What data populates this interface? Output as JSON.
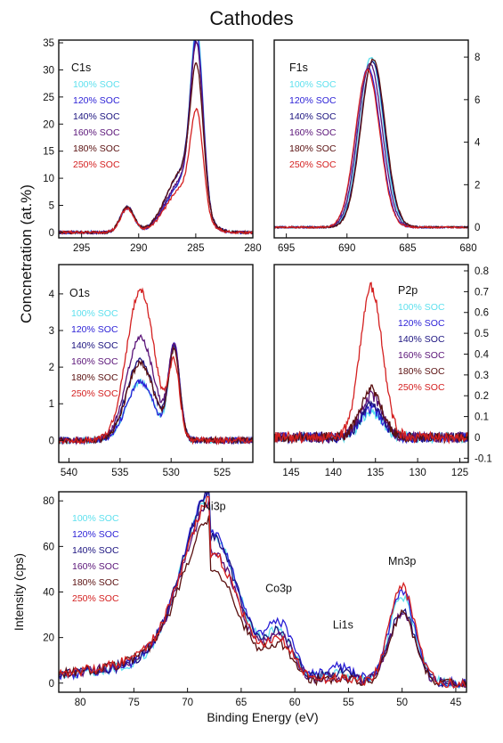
{
  "title": "Cathodes",
  "shared_ylabel": "Concnetration (at.%)",
  "legend": [
    "100% SOC",
    "120% SOC",
    "140% SOC",
    "160% SOC",
    "180% SOC",
    "250% SOC"
  ],
  "series_colors": [
    "#5ee0ee",
    "#2a1fd6",
    "#1c1480",
    "#5a1478",
    "#5a1010",
    "#d42020"
  ],
  "chart_data": [
    {
      "type": "line",
      "panel": "C1s",
      "title": "C1s",
      "xlabel": "",
      "ylabel": "",
      "xlim": [
        297,
        280
      ],
      "ylim": [
        -1,
        35.5
      ],
      "xticks": [
        295,
        290,
        285,
        280
      ],
      "yticks": [
        0,
        5,
        10,
        15,
        20,
        25,
        30,
        35
      ],
      "y_axis_side": "left",
      "peaks": [
        {
          "center": 291,
          "width": 0.6,
          "heights": [
            4.6,
            4.5,
            4.7,
            4.6,
            4.8,
            4.4
          ]
        },
        {
          "center": 286.2,
          "width": 1.4,
          "heights": [
            9,
            9,
            11,
            9.5,
            11,
            8
          ]
        },
        {
          "center": 284.9,
          "width": 0.55,
          "heights": [
            32.5,
            31,
            28,
            29,
            24,
            17.5
          ]
        }
      ],
      "noise": 0.25,
      "series": [
        {
          "name": "100% SOC"
        },
        {
          "name": "120% SOC"
        },
        {
          "name": "140% SOC"
        },
        {
          "name": "160% SOC"
        },
        {
          "name": "180% SOC"
        },
        {
          "name": "250% SOC"
        }
      ]
    },
    {
      "type": "line",
      "panel": "F1s",
      "title": "F1s",
      "xlabel": "",
      "ylabel": "",
      "xlim": [
        696,
        680
      ],
      "ylim": [
        -0.5,
        8.8
      ],
      "xticks": [
        695,
        690,
        685,
        680
      ],
      "yticks": [
        0,
        2,
        4,
        6,
        8
      ],
      "y_axis_side": "right",
      "peaks": [
        {
          "center": 688,
          "width": 1.0,
          "heights": [
            8.0,
            7.5,
            7.8,
            7.7,
            7.9,
            7.4
          ]
        }
      ],
      "peak_shifts": [
        0,
        0.25,
        -0.1,
        0.1,
        -0.15,
        0.3
      ],
      "noise": 0.04,
      "series": [
        {
          "name": "100% SOC"
        },
        {
          "name": "120% SOC"
        },
        {
          "name": "140% SOC"
        },
        {
          "name": "160% SOC"
        },
        {
          "name": "180% SOC"
        },
        {
          "name": "250% SOC"
        }
      ]
    },
    {
      "type": "line",
      "panel": "O1s",
      "title": "O1s",
      "xlabel": "",
      "ylabel": "",
      "xlim": [
        541,
        522
      ],
      "ylim": [
        -0.6,
        4.8
      ],
      "xticks": [
        540,
        535,
        530,
        525
      ],
      "yticks": [
        0,
        1,
        2,
        3,
        4
      ],
      "y_axis_side": "left",
      "peaks": [
        {
          "center": 533,
          "width": 1.35,
          "heights": [
            1.6,
            1.6,
            2.2,
            2.8,
            2.1,
            4.1
          ]
        },
        {
          "center": 529.7,
          "width": 0.55,
          "heights": [
            2.5,
            2.6,
            2.5,
            2.5,
            2.4,
            2.0
          ]
        }
      ],
      "noise": 0.08,
      "series": [
        {
          "name": "100% SOC"
        },
        {
          "name": "120% SOC"
        },
        {
          "name": "140% SOC"
        },
        {
          "name": "160% SOC"
        },
        {
          "name": "180% SOC"
        },
        {
          "name": "250% SOC"
        }
      ]
    },
    {
      "type": "line",
      "panel": "P2p",
      "title": "P2p",
      "xlabel": "",
      "ylabel": "",
      "xlim": [
        147,
        124
      ],
      "ylim": [
        -0.12,
        0.83
      ],
      "xticks": [
        145,
        140,
        135,
        130,
        125
      ],
      "yticks": [
        -0.1,
        0,
        0.1,
        0.2,
        0.3,
        0.4,
        0.5,
        0.6,
        0.7,
        0.8
      ],
      "y_axis_side": "right",
      "peaks": [
        {
          "center": 135.5,
          "width": 1.3,
          "heights": [
            0.12,
            0.14,
            0.15,
            0.2,
            0.23,
            0.72
          ]
        }
      ],
      "noise": 0.025,
      "series": [
        {
          "name": "100% SOC"
        },
        {
          "name": "120% SOC"
        },
        {
          "name": "140% SOC"
        },
        {
          "name": "160% SOC"
        },
        {
          "name": "180% SOC"
        },
        {
          "name": "250% SOC"
        }
      ]
    },
    {
      "type": "line",
      "panel": "Ni3p-Co3p-Li1s-Mn3p",
      "xlabel": "Binding Energy (eV)",
      "ylabel": "Intensity (cps)",
      "xlim": [
        82,
        44
      ],
      "ylim": [
        -4,
        84
      ],
      "xticks": [
        80,
        75,
        70,
        65,
        60,
        55,
        50,
        45
      ],
      "yticks": [
        0,
        20,
        40,
        60,
        80
      ],
      "y_axis_side": "left",
      "annotations": [
        {
          "text": "Ni3p",
          "x": 67.5,
          "y": 76
        },
        {
          "text": "Co3p",
          "x": 61.5,
          "y": 40
        },
        {
          "text": "Li1s",
          "x": 55.5,
          "y": 24
        },
        {
          "text": "Mn3p",
          "x": 50,
          "y": 52
        }
      ],
      "peaks": [
        {
          "center": 67.8,
          "width": 2.6,
          "heights": [
            66,
            66,
            64,
            58,
            50,
            57
          ]
        },
        {
          "center": 61.3,
          "width": 1.3,
          "heights": [
            20,
            24,
            20,
            18,
            15,
            17
          ]
        },
        {
          "center": 56,
          "width": 1.5,
          "heights": [
            4,
            7,
            5,
            3,
            2,
            2
          ]
        },
        {
          "center": 50,
          "width": 1.2,
          "heights": [
            38,
            40,
            32,
            30,
            30,
            42
          ]
        }
      ],
      "tail": {
        "amp": 22,
        "decay": 8,
        "start": 68
      },
      "noise": 2.2,
      "series": [
        {
          "name": "100% SOC"
        },
        {
          "name": "120% SOC"
        },
        {
          "name": "140% SOC"
        },
        {
          "name": "160% SOC"
        },
        {
          "name": "180% SOC"
        },
        {
          "name": "250% SOC"
        }
      ]
    }
  ]
}
